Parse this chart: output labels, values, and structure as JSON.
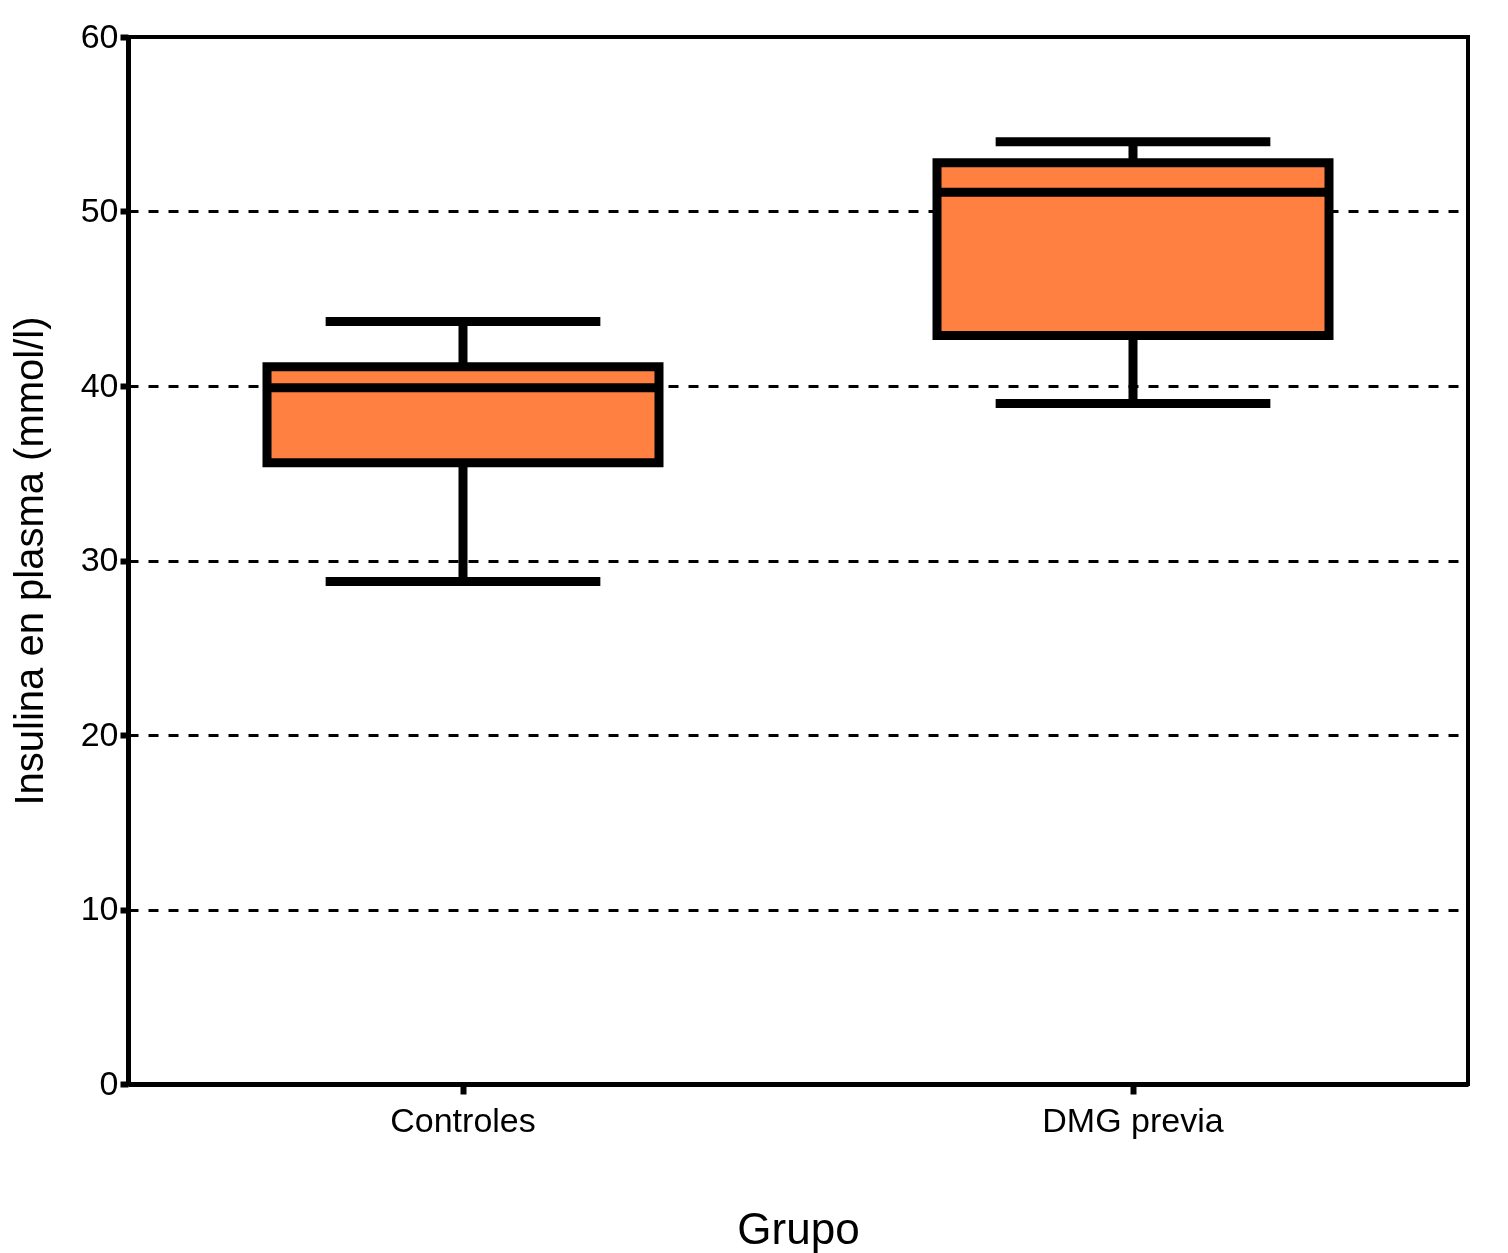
{
  "chart_data": {
    "type": "box",
    "xlabel": "Grupo",
    "ylabel": "Insulina en plasma (mmol/l)",
    "categories": [
      "Controles",
      "DMG previa"
    ],
    "boxes": [
      {
        "low": 28.8,
        "q1": 35.6,
        "median": 39.9,
        "q3": 41.1,
        "high": 43.7
      },
      {
        "low": 39.0,
        "q1": 42.9,
        "median": 51.1,
        "q3": 52.8,
        "high": 54.0
      }
    ],
    "color": "#ff8040",
    "ylim": [
      0,
      60
    ],
    "yticks": [
      0,
      10,
      20,
      30,
      40,
      50,
      60
    ],
    "grid": "y"
  }
}
